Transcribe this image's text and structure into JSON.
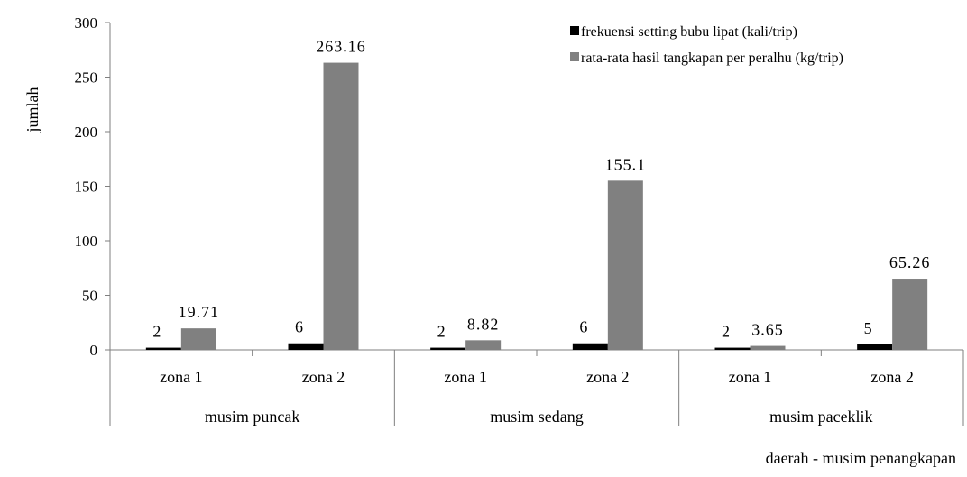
{
  "chart_data": {
    "type": "bar",
    "ylabel": "jumlah",
    "xlabel": "daerah - musim penangkapan",
    "ylim": [
      0,
      300
    ],
    "yticks": [
      0,
      50,
      100,
      150,
      200,
      250,
      300
    ],
    "ytick_labels": [
      "0",
      "50",
      "100",
      "150",
      "200",
      "250",
      "300"
    ],
    "categories": [
      "zona 1",
      "zona 2",
      "zona 1",
      "zona 2",
      "zona 1",
      "zona 2"
    ],
    "groups": [
      {
        "label": "musim puncak",
        "span": [
          0,
          1
        ]
      },
      {
        "label": "musim sedang",
        "span": [
          2,
          3
        ]
      },
      {
        "label": "musim paceklik",
        "span": [
          4,
          5
        ]
      }
    ],
    "series": [
      {
        "name": "frekuensi setting bubu lipat (kali/trip)",
        "color": "#000000",
        "values": [
          2,
          6,
          2,
          6,
          2,
          5
        ],
        "labels": [
          "2",
          "6",
          "2",
          "6",
          "2",
          "5"
        ]
      },
      {
        "name": "rata-rata hasil tangkapan per peralhu (kg/trip)",
        "color": "#808080",
        "values": [
          19.71,
          263.16,
          8.82,
          155.1,
          3.65,
          65.26
        ],
        "labels": [
          "19.71",
          "263.16",
          "8.82",
          "155.1",
          "3.65",
          "65.26"
        ]
      }
    ],
    "legend": "top-right",
    "grid": false
  }
}
